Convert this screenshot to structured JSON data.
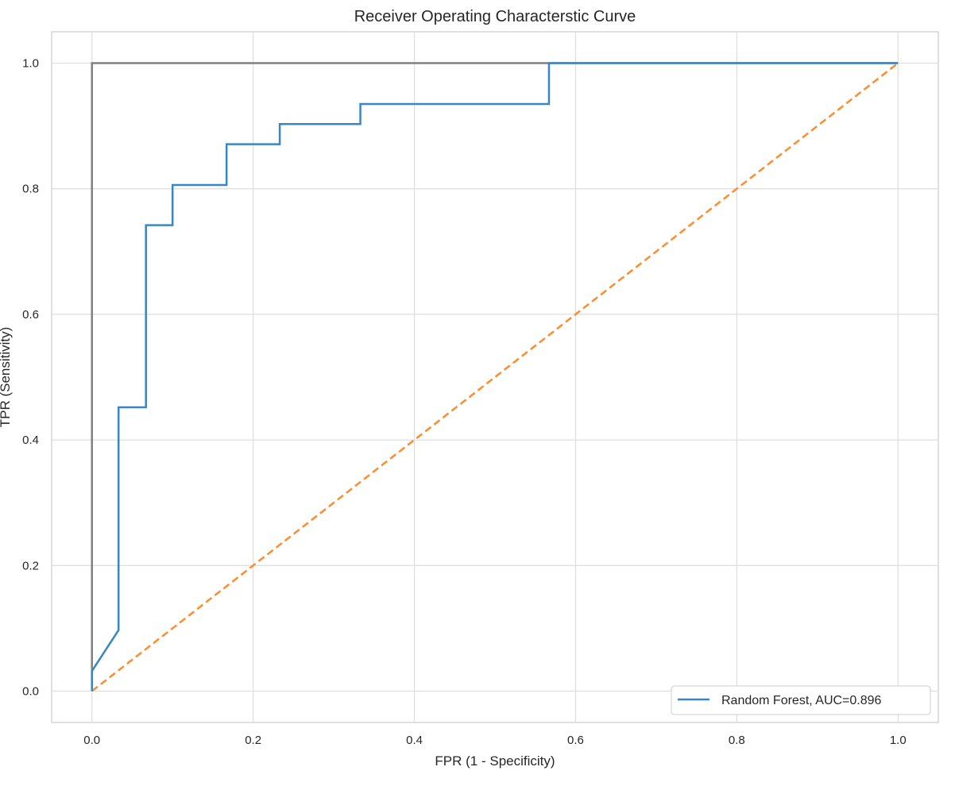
{
  "chart_data": {
    "type": "line",
    "title": "Receiver Operating Characterstic Curve",
    "xlabel": "FPR (1 - Specificity)",
    "ylabel": "TPR (Sensitivity)",
    "xlim": [
      -0.05,
      1.05
    ],
    "ylim": [
      -0.05,
      1.05
    ],
    "xticks": [
      0.0,
      0.2,
      0.4,
      0.6,
      0.8,
      1.0
    ],
    "yticks": [
      0.0,
      0.2,
      0.4,
      0.6,
      0.8,
      1.0
    ],
    "xtick_labels": [
      "0.0",
      "0.2",
      "0.4",
      "0.6",
      "0.8",
      "1.0"
    ],
    "ytick_labels": [
      "0.0",
      "0.2",
      "0.4",
      "0.6",
      "0.8",
      "1.0"
    ],
    "grid": true,
    "legend_position": "lower-right",
    "series": [
      {
        "name": "Random Forest, AUC=0.896",
        "color": "#3a86c0",
        "style": "solid",
        "x": [
          0.0,
          0.0,
          0.033,
          0.033,
          0.067,
          0.067,
          0.1,
          0.1,
          0.167,
          0.167,
          0.233,
          0.233,
          0.333,
          0.333,
          0.567,
          0.567,
          1.0
        ],
        "y": [
          0.0,
          0.032,
          0.097,
          0.452,
          0.452,
          0.742,
          0.742,
          0.806,
          0.806,
          0.871,
          0.871,
          0.903,
          0.903,
          0.935,
          0.935,
          1.0,
          1.0
        ]
      },
      {
        "color": "#ff8c2e",
        "style": "dashed",
        "x": [
          0.0,
          1.0
        ],
        "y": [
          0.0,
          1.0
        ]
      },
      {
        "color": "#808080",
        "style": "solid",
        "x": [
          0.0,
          0.0,
          1.0
        ],
        "y": [
          0.0,
          1.0,
          1.0
        ]
      }
    ]
  }
}
